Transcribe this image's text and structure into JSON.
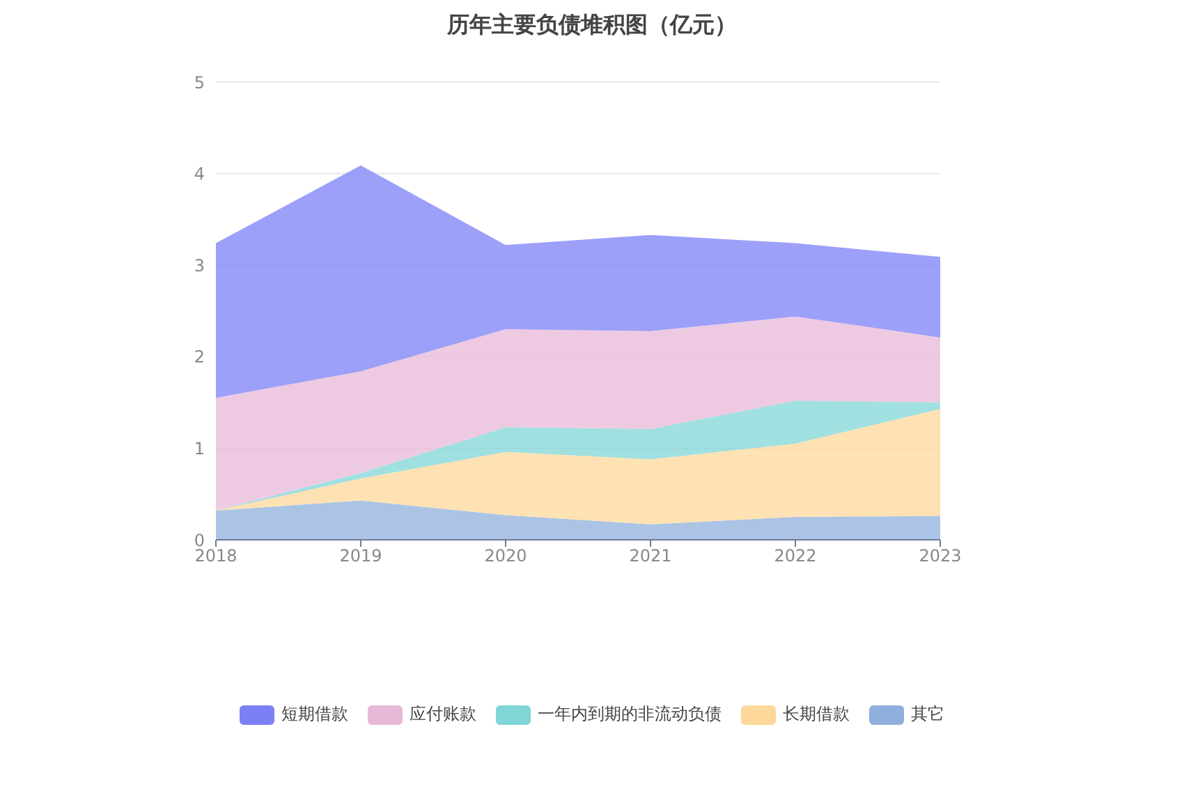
{
  "chart_data": {
    "type": "area",
    "title": "历年主要负债堆积图（亿元）",
    "stacked": true,
    "categories": [
      "2018",
      "2019",
      "2020",
      "2021",
      "2022",
      "2023"
    ],
    "series": [
      {
        "name": "其它",
        "color": "#8fb0dc",
        "values": [
          0.32,
          0.43,
          0.27,
          0.17,
          0.25,
          0.26
        ]
      },
      {
        "name": "长期借款",
        "color": "#fdd89a",
        "values": [
          0,
          0.24,
          0.69,
          0.71,
          0.8,
          1.17
        ]
      },
      {
        "name": "一年内到期的非流动负债",
        "color": "#80d6d6",
        "values": [
          0,
          0.06,
          0.27,
          0.33,
          0.47,
          0.07
        ]
      },
      {
        "name": "应付账款",
        "color": "#e8b8d8",
        "values": [
          1.23,
          1.11,
          1.07,
          1.07,
          0.92,
          0.71
        ]
      },
      {
        "name": "短期借款",
        "color": "#7c80f6",
        "values": [
          1.69,
          2.25,
          0.92,
          1.05,
          0.8,
          0.88
        ]
      }
    ],
    "ylim": [
      0,
      5
    ],
    "yticks": [
      0,
      1,
      2,
      3,
      4,
      5
    ],
    "grid": "y",
    "legend": "bottom"
  }
}
